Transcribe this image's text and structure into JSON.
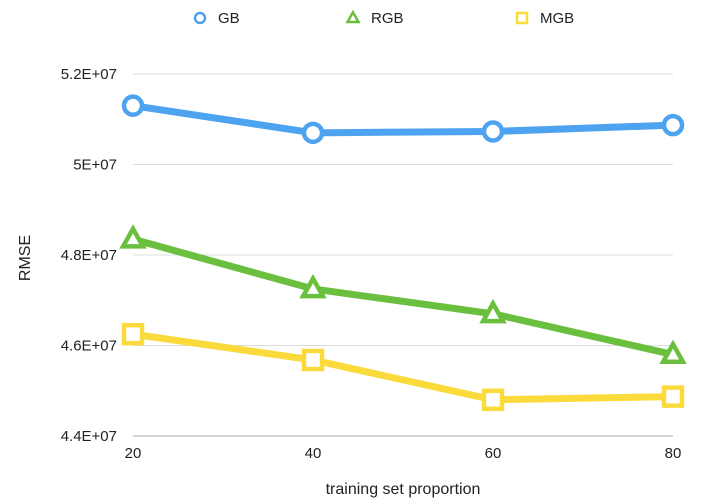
{
  "chart_data": {
    "type": "line",
    "title": "",
    "xlabel": "training set proportion",
    "ylabel": "RMSE",
    "x": [
      20,
      40,
      60,
      80
    ],
    "x_tick_labels": [
      "20",
      "40",
      "60",
      "80"
    ],
    "ylim": [
      44000000,
      52000000
    ],
    "y_ticks": [
      44000000,
      46000000,
      48000000,
      50000000,
      52000000
    ],
    "y_tick_labels": [
      "4.4E+07",
      "4.6E+07",
      "4.8E+07",
      "5E+07",
      "5.2E+07"
    ],
    "grid": true,
    "legend_position": "top",
    "series": [
      {
        "name": "GB",
        "marker": "circle",
        "color": "#4da3ef",
        "values": [
          51300000,
          50700000,
          50730000,
          50870000
        ]
      },
      {
        "name": "RGB",
        "marker": "triangle",
        "color": "#6abf3f",
        "values": [
          48350000,
          47250000,
          46700000,
          45800000
        ]
      },
      {
        "name": "MGB",
        "marker": "square",
        "color": "#fbdb3c",
        "values": [
          46250000,
          45680000,
          44800000,
          44870000
        ]
      }
    ]
  }
}
